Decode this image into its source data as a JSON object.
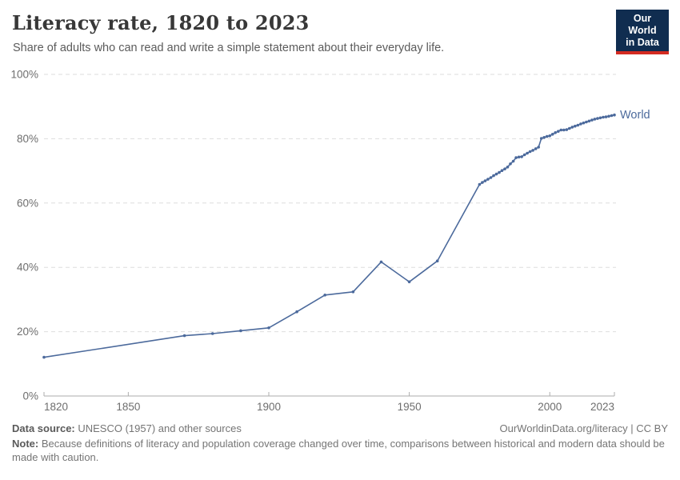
{
  "header": {
    "title": "Literacy rate, 1820 to 2023",
    "subtitle": "Share of adults who can read and write a simple statement about their everyday life.",
    "logo_line1": "Our World",
    "logo_line2": "in Data"
  },
  "chart_data": {
    "type": "line",
    "title": "Literacy rate, 1820 to 2023",
    "xlabel": "",
    "ylabel": "",
    "xlim": [
      1820,
      2023
    ],
    "ylim": [
      0,
      100
    ],
    "x_ticks": [
      1820,
      1850,
      1900,
      1950,
      2000,
      2023
    ],
    "y_ticks": [
      0,
      20,
      40,
      60,
      80,
      100
    ],
    "y_tick_suffix": "%",
    "grid": "horizontal-dashed",
    "legend_position": "end-of-line-label",
    "series": [
      {
        "name": "World",
        "color": "#4C6A9C",
        "points": [
          [
            1820,
            12.05
          ],
          [
            1870,
            18.75
          ],
          [
            1880,
            19.4
          ],
          [
            1890,
            20.3
          ],
          [
            1900,
            21.2
          ],
          [
            1910,
            26.2
          ],
          [
            1920,
            31.4
          ],
          [
            1930,
            32.4
          ],
          [
            1940,
            41.7
          ],
          [
            1950,
            35.5
          ],
          [
            1960,
            42.0
          ],
          [
            1975,
            65.8
          ],
          [
            1976,
            66.4
          ],
          [
            1977,
            66.9
          ],
          [
            1978,
            67.4
          ],
          [
            1979,
            67.9
          ],
          [
            1980,
            68.5
          ],
          [
            1981,
            69.0
          ],
          [
            1982,
            69.5
          ],
          [
            1983,
            70.1
          ],
          [
            1984,
            70.6
          ],
          [
            1985,
            71.2
          ],
          [
            1986,
            72.2
          ],
          [
            1987,
            73.0
          ],
          [
            1988,
            74.1
          ],
          [
            1989,
            74.3
          ],
          [
            1990,
            74.4
          ],
          [
            1991,
            75.0
          ],
          [
            1992,
            75.5
          ],
          [
            1993,
            76.0
          ],
          [
            1994,
            76.4
          ],
          [
            1995,
            76.9
          ],
          [
            1996,
            77.4
          ],
          [
            1997,
            80.1
          ],
          [
            1998,
            80.4
          ],
          [
            1999,
            80.7
          ],
          [
            2000,
            80.9
          ],
          [
            2001,
            81.4
          ],
          [
            2002,
            81.9
          ],
          [
            2003,
            82.3
          ],
          [
            2004,
            82.7
          ],
          [
            2005,
            82.7
          ],
          [
            2006,
            82.8
          ],
          [
            2007,
            83.2
          ],
          [
            2008,
            83.6
          ],
          [
            2009,
            83.9
          ],
          [
            2010,
            84.2
          ],
          [
            2011,
            84.6
          ],
          [
            2012,
            84.9
          ],
          [
            2013,
            85.2
          ],
          [
            2014,
            85.5
          ],
          [
            2015,
            85.8
          ],
          [
            2016,
            86.1
          ],
          [
            2017,
            86.3
          ],
          [
            2018,
            86.5
          ],
          [
            2019,
            86.7
          ],
          [
            2020,
            86.8
          ],
          [
            2021,
            87.0
          ],
          [
            2022,
            87.2
          ],
          [
            2023,
            87.4
          ]
        ]
      }
    ]
  },
  "footer": {
    "source_label": "Data source:",
    "source_text": " UNESCO (1957) and other sources",
    "link_text": "OurWorldinData.org/literacy | CC BY",
    "note_label": "Note:",
    "note_text": " Because definitions of literacy and population coverage changed over time, comparisons between historical and modern data should be made with caution."
  },
  "colors": {
    "line": "#4C6A9C",
    "grid": "#dedede",
    "axis": "#adadad",
    "tick_label": "#6e6e6e",
    "logo_bg": "#102d50",
    "logo_accent": "#d42b21"
  }
}
